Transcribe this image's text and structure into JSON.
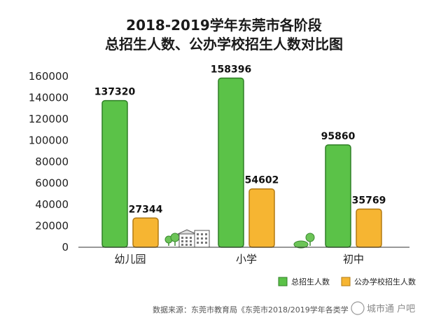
{
  "chart_data": {
    "type": "bar",
    "title_line1": "2018-2019学年东莞市各阶段",
    "title_line2": "总招生人数、公办学校招生人数对比图",
    "categories": [
      "幼儿园",
      "小学",
      "初中"
    ],
    "series": [
      {
        "name": "总招生人数",
        "values": [
          137320,
          158396,
          95860
        ],
        "color": "#5bc248",
        "border": "#2f7e26"
      },
      {
        "name": "公办学校招生人数",
        "values": [
          27344,
          54602,
          35769
        ],
        "color": "#f6b532",
        "border": "#b27a12"
      }
    ],
    "data_labels": [
      [
        "137320",
        "27344"
      ],
      [
        "158396",
        "54602"
      ],
      [
        "95860",
        "35769"
      ]
    ],
    "ylim": [
      0,
      160000
    ],
    "yticks": [
      0,
      20000,
      40000,
      60000,
      80000,
      100000,
      120000,
      140000,
      160000
    ],
    "grid": false,
    "legend_position": "bottom-right"
  },
  "source": "数据来源：东莞市教育局《东莞市2018/2019学年各类学",
  "watermark": "城市通 户吧"
}
